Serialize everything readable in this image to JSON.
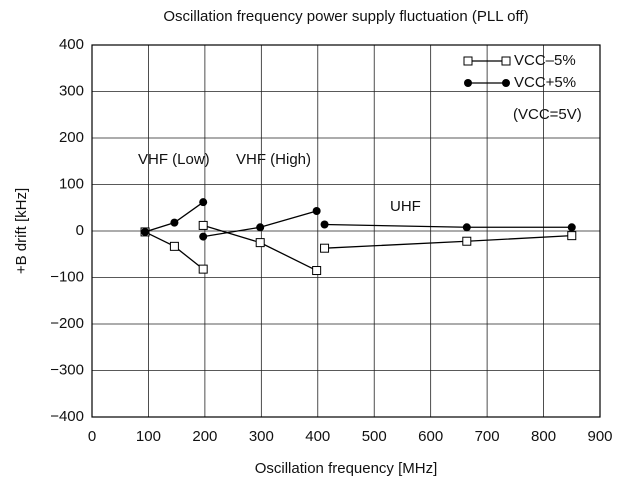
{
  "chart_data": {
    "type": "line",
    "title": "Oscillation frequency power supply fluctuation (PLL off)",
    "x_label": "Oscillation frequency [MHz]",
    "y_label": "+B drift [kHz]",
    "xlim": [
      0,
      900
    ],
    "xticks": [
      0,
      100,
      200,
      300,
      400,
      500,
      600,
      700,
      800,
      900
    ],
    "ylim": [
      -400,
      400
    ],
    "yticks": [
      {
        "value": -400,
        "label": "−400"
      },
      {
        "value": -300,
        "label": "−300"
      },
      {
        "value": -200,
        "label": "−200"
      },
      {
        "value": -100,
        "label": "−100"
      },
      0,
      100,
      200,
      300,
      400
    ],
    "grid": true,
    "legend": "upper right",
    "series": [
      {
        "name": "VCC–5%",
        "color": "#000000",
        "marker": "open-square",
        "x": [
          94,
          146,
          197,
          null,
          197,
          298,
          398,
          null,
          412,
          664,
          850
        ],
        "values": [
          -2,
          -33,
          -82,
          null,
          12,
          -25,
          -85,
          null,
          -37,
          -22,
          -10
        ]
      },
      {
        "name": "VCC+5%",
        "color": "#000000",
        "marker": "filled-circle",
        "x": [
          94,
          146,
          197,
          null,
          197,
          298,
          398,
          null,
          412,
          664,
          850
        ],
        "values": [
          -2,
          18,
          62,
          null,
          -12,
          8,
          43,
          null,
          14,
          8,
          8
        ]
      }
    ],
    "annotations": [
      "VHF (Low)",
      "VHF (High)",
      "UHF",
      "(VCC=5V)"
    ]
  }
}
